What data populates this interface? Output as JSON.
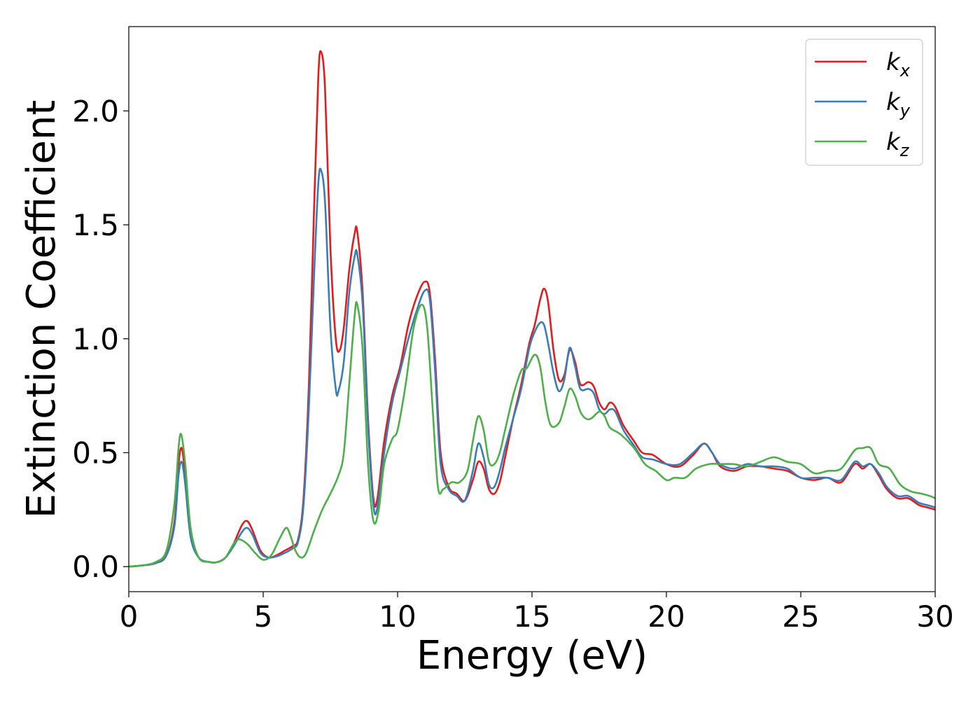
{
  "chart_data": {
    "type": "line",
    "xlabel": "Energy (eV)",
    "ylabel": "Extinction Coefficient",
    "xlim": [
      0,
      30
    ],
    "ylim": [
      -0.11,
      2.37
    ],
    "xticks": [
      0,
      5,
      10,
      15,
      20,
      25,
      30
    ],
    "xtick_labels": [
      "0",
      "5",
      "10",
      "15",
      "20",
      "25",
      "30"
    ],
    "yticks": [
      0.0,
      0.5,
      1.0,
      1.5,
      2.0
    ],
    "ytick_labels": [
      "0.0",
      "0.5",
      "1.0",
      "1.5",
      "2.0"
    ],
    "grid": false,
    "legend_position": "top-right",
    "series": [
      {
        "name": "k",
        "subscript": "x",
        "color": "#e41a1c",
        "points": [
          [
            0,
            0
          ],
          [
            0.5,
            0.005
          ],
          [
            1.0,
            0.015
          ],
          [
            1.4,
            0.05
          ],
          [
            1.7,
            0.2
          ],
          [
            1.85,
            0.45
          ],
          [
            1.97,
            0.52
          ],
          [
            2.1,
            0.4
          ],
          [
            2.3,
            0.15
          ],
          [
            2.6,
            0.04
          ],
          [
            3.0,
            0.02
          ],
          [
            3.3,
            0.02
          ],
          [
            3.6,
            0.04
          ],
          [
            3.9,
            0.1
          ],
          [
            4.2,
            0.18
          ],
          [
            4.4,
            0.2
          ],
          [
            4.6,
            0.16
          ],
          [
            4.9,
            0.07
          ],
          [
            5.2,
            0.04
          ],
          [
            5.5,
            0.05
          ],
          [
            5.8,
            0.07
          ],
          [
            6.1,
            0.09
          ],
          [
            6.3,
            0.12
          ],
          [
            6.5,
            0.3
          ],
          [
            6.7,
            0.8
          ],
          [
            6.9,
            1.6
          ],
          [
            7.05,
            2.15
          ],
          [
            7.15,
            2.26
          ],
          [
            7.3,
            2.1
          ],
          [
            7.5,
            1.4
          ],
          [
            7.7,
            1.0
          ],
          [
            7.85,
            0.95
          ],
          [
            8.0,
            1.05
          ],
          [
            8.2,
            1.3
          ],
          [
            8.4,
            1.46
          ],
          [
            8.5,
            1.47
          ],
          [
            8.7,
            1.2
          ],
          [
            8.9,
            0.65
          ],
          [
            9.1,
            0.3
          ],
          [
            9.25,
            0.3
          ],
          [
            9.5,
            0.55
          ],
          [
            9.8,
            0.75
          ],
          [
            10.1,
            0.88
          ],
          [
            10.4,
            1.06
          ],
          [
            10.7,
            1.18
          ],
          [
            11.0,
            1.25
          ],
          [
            11.2,
            1.2
          ],
          [
            11.4,
            0.9
          ],
          [
            11.6,
            0.5
          ],
          [
            11.9,
            0.35
          ],
          [
            12.2,
            0.32
          ],
          [
            12.5,
            0.29
          ],
          [
            12.8,
            0.38
          ],
          [
            13.0,
            0.46
          ],
          [
            13.2,
            0.43
          ],
          [
            13.4,
            0.34
          ],
          [
            13.6,
            0.32
          ],
          [
            13.8,
            0.37
          ],
          [
            14.0,
            0.48
          ],
          [
            14.3,
            0.65
          ],
          [
            14.6,
            0.8
          ],
          [
            14.9,
            0.98
          ],
          [
            15.1,
            1.06
          ],
          [
            15.3,
            1.17
          ],
          [
            15.45,
            1.22
          ],
          [
            15.6,
            1.16
          ],
          [
            15.8,
            0.95
          ],
          [
            16.0,
            0.82
          ],
          [
            16.2,
            0.84
          ],
          [
            16.4,
            0.95
          ],
          [
            16.6,
            0.9
          ],
          [
            16.8,
            0.8
          ],
          [
            17.1,
            0.81
          ],
          [
            17.3,
            0.79
          ],
          [
            17.5,
            0.72
          ],
          [
            17.7,
            0.69
          ],
          [
            17.9,
            0.72
          ],
          [
            18.1,
            0.7
          ],
          [
            18.4,
            0.62
          ],
          [
            18.8,
            0.55
          ],
          [
            19.1,
            0.5
          ],
          [
            19.5,
            0.49
          ],
          [
            20.0,
            0.45
          ],
          [
            20.5,
            0.44
          ],
          [
            21.0,
            0.49
          ],
          [
            21.4,
            0.54
          ],
          [
            21.7,
            0.5
          ],
          [
            22.0,
            0.44
          ],
          [
            22.5,
            0.42
          ],
          [
            23.0,
            0.44
          ],
          [
            23.5,
            0.44
          ],
          [
            24.0,
            0.43
          ],
          [
            24.5,
            0.42
          ],
          [
            25.0,
            0.39
          ],
          [
            25.5,
            0.38
          ],
          [
            26.0,
            0.39
          ],
          [
            26.5,
            0.37
          ],
          [
            27.0,
            0.45
          ],
          [
            27.3,
            0.43
          ],
          [
            27.6,
            0.45
          ],
          [
            27.9,
            0.4
          ],
          [
            28.2,
            0.34
          ],
          [
            28.6,
            0.3
          ],
          [
            29.0,
            0.3
          ],
          [
            29.4,
            0.27
          ],
          [
            29.7,
            0.26
          ],
          [
            30.0,
            0.25
          ]
        ]
      },
      {
        "name": "k",
        "subscript": "y",
        "color": "#377eb8",
        "points": [
          [
            0,
            0
          ],
          [
            0.5,
            0.005
          ],
          [
            1.0,
            0.015
          ],
          [
            1.4,
            0.05
          ],
          [
            1.7,
            0.18
          ],
          [
            1.85,
            0.4
          ],
          [
            1.97,
            0.46
          ],
          [
            2.1,
            0.36
          ],
          [
            2.3,
            0.13
          ],
          [
            2.6,
            0.04
          ],
          [
            3.0,
            0.02
          ],
          [
            3.3,
            0.02
          ],
          [
            3.6,
            0.04
          ],
          [
            3.9,
            0.09
          ],
          [
            4.2,
            0.15
          ],
          [
            4.4,
            0.17
          ],
          [
            4.6,
            0.14
          ],
          [
            4.9,
            0.06
          ],
          [
            5.2,
            0.04
          ],
          [
            5.5,
            0.045
          ],
          [
            5.8,
            0.06
          ],
          [
            6.1,
            0.08
          ],
          [
            6.3,
            0.11
          ],
          [
            6.5,
            0.27
          ],
          [
            6.7,
            0.7
          ],
          [
            6.9,
            1.3
          ],
          [
            7.05,
            1.68
          ],
          [
            7.15,
            1.74
          ],
          [
            7.3,
            1.6
          ],
          [
            7.5,
            1.05
          ],
          [
            7.7,
            0.78
          ],
          [
            7.8,
            0.77
          ],
          [
            8.0,
            0.9
          ],
          [
            8.2,
            1.2
          ],
          [
            8.4,
            1.36
          ],
          [
            8.5,
            1.37
          ],
          [
            8.7,
            1.15
          ],
          [
            8.9,
            0.62
          ],
          [
            9.1,
            0.27
          ],
          [
            9.25,
            0.26
          ],
          [
            9.5,
            0.5
          ],
          [
            9.8,
            0.72
          ],
          [
            10.1,
            0.86
          ],
          [
            10.4,
            1.0
          ],
          [
            10.7,
            1.12
          ],
          [
            11.0,
            1.21
          ],
          [
            11.2,
            1.17
          ],
          [
            11.4,
            0.85
          ],
          [
            11.6,
            0.45
          ],
          [
            11.9,
            0.34
          ],
          [
            12.2,
            0.31
          ],
          [
            12.5,
            0.29
          ],
          [
            12.8,
            0.42
          ],
          [
            13.0,
            0.54
          ],
          [
            13.2,
            0.48
          ],
          [
            13.4,
            0.36
          ],
          [
            13.6,
            0.35
          ],
          [
            13.8,
            0.42
          ],
          [
            14.0,
            0.52
          ],
          [
            14.3,
            0.65
          ],
          [
            14.6,
            0.78
          ],
          [
            14.9,
            0.96
          ],
          [
            15.1,
            1.03
          ],
          [
            15.3,
            1.07
          ],
          [
            15.45,
            1.06
          ],
          [
            15.6,
            0.98
          ],
          [
            15.8,
            0.85
          ],
          [
            16.0,
            0.77
          ],
          [
            16.2,
            0.82
          ],
          [
            16.4,
            0.96
          ],
          [
            16.6,
            0.88
          ],
          [
            16.8,
            0.78
          ],
          [
            17.1,
            0.78
          ],
          [
            17.3,
            0.76
          ],
          [
            17.5,
            0.69
          ],
          [
            17.7,
            0.67
          ],
          [
            17.9,
            0.69
          ],
          [
            18.1,
            0.68
          ],
          [
            18.4,
            0.6
          ],
          [
            18.8,
            0.53
          ],
          [
            19.1,
            0.48
          ],
          [
            19.5,
            0.47
          ],
          [
            20.0,
            0.45
          ],
          [
            20.5,
            0.45
          ],
          [
            21.0,
            0.5
          ],
          [
            21.4,
            0.54
          ],
          [
            21.7,
            0.5
          ],
          [
            22.0,
            0.45
          ],
          [
            22.5,
            0.43
          ],
          [
            23.0,
            0.45
          ],
          [
            23.5,
            0.44
          ],
          [
            24.0,
            0.44
          ],
          [
            24.5,
            0.43
          ],
          [
            25.0,
            0.39
          ],
          [
            25.5,
            0.39
          ],
          [
            26.0,
            0.39
          ],
          [
            26.5,
            0.38
          ],
          [
            27.0,
            0.46
          ],
          [
            27.3,
            0.44
          ],
          [
            27.6,
            0.45
          ],
          [
            27.9,
            0.41
          ],
          [
            28.2,
            0.35
          ],
          [
            28.6,
            0.31
          ],
          [
            29.0,
            0.31
          ],
          [
            29.4,
            0.28
          ],
          [
            29.7,
            0.27
          ],
          [
            30.0,
            0.26
          ]
        ]
      },
      {
        "name": "k",
        "subscript": "z",
        "color": "#4daf4a",
        "points": [
          [
            0,
            0
          ],
          [
            0.5,
            0.005
          ],
          [
            1.0,
            0.02
          ],
          [
            1.4,
            0.07
          ],
          [
            1.7,
            0.28
          ],
          [
            1.85,
            0.52
          ],
          [
            1.95,
            0.58
          ],
          [
            2.1,
            0.45
          ],
          [
            2.3,
            0.17
          ],
          [
            2.6,
            0.04
          ],
          [
            3.0,
            0.02
          ],
          [
            3.3,
            0.02
          ],
          [
            3.6,
            0.04
          ],
          [
            3.9,
            0.1
          ],
          [
            4.1,
            0.12
          ],
          [
            4.4,
            0.1
          ],
          [
            4.7,
            0.06
          ],
          [
            5.0,
            0.03
          ],
          [
            5.3,
            0.05
          ],
          [
            5.6,
            0.12
          ],
          [
            5.85,
            0.17
          ],
          [
            6.0,
            0.14
          ],
          [
            6.2,
            0.07
          ],
          [
            6.4,
            0.04
          ],
          [
            6.6,
            0.06
          ],
          [
            6.9,
            0.16
          ],
          [
            7.2,
            0.25
          ],
          [
            7.5,
            0.32
          ],
          [
            7.8,
            0.4
          ],
          [
            8.0,
            0.5
          ],
          [
            8.2,
            0.8
          ],
          [
            8.4,
            1.1
          ],
          [
            8.5,
            1.15
          ],
          [
            8.7,
            0.95
          ],
          [
            8.9,
            0.45
          ],
          [
            9.1,
            0.2
          ],
          [
            9.3,
            0.25
          ],
          [
            9.5,
            0.45
          ],
          [
            9.8,
            0.56
          ],
          [
            10.0,
            0.6
          ],
          [
            10.3,
            0.8
          ],
          [
            10.6,
            1.05
          ],
          [
            10.9,
            1.15
          ],
          [
            11.1,
            1.05
          ],
          [
            11.3,
            0.7
          ],
          [
            11.5,
            0.35
          ],
          [
            11.7,
            0.34
          ],
          [
            12.0,
            0.37
          ],
          [
            12.3,
            0.37
          ],
          [
            12.6,
            0.42
          ],
          [
            12.8,
            0.55
          ],
          [
            13.0,
            0.66
          ],
          [
            13.2,
            0.6
          ],
          [
            13.4,
            0.46
          ],
          [
            13.6,
            0.45
          ],
          [
            13.8,
            0.5
          ],
          [
            14.0,
            0.6
          ],
          [
            14.3,
            0.75
          ],
          [
            14.6,
            0.86
          ],
          [
            14.8,
            0.87
          ],
          [
            15.1,
            0.93
          ],
          [
            15.3,
            0.88
          ],
          [
            15.5,
            0.72
          ],
          [
            15.7,
            0.62
          ],
          [
            16.0,
            0.63
          ],
          [
            16.2,
            0.7
          ],
          [
            16.4,
            0.78
          ],
          [
            16.6,
            0.75
          ],
          [
            16.8,
            0.68
          ],
          [
            17.0,
            0.65
          ],
          [
            17.2,
            0.65
          ],
          [
            17.5,
            0.68
          ],
          [
            17.7,
            0.66
          ],
          [
            17.9,
            0.61
          ],
          [
            18.3,
            0.58
          ],
          [
            18.8,
            0.52
          ],
          [
            19.2,
            0.45
          ],
          [
            19.6,
            0.42
          ],
          [
            20.0,
            0.38
          ],
          [
            20.3,
            0.39
          ],
          [
            20.7,
            0.39
          ],
          [
            21.1,
            0.43
          ],
          [
            21.6,
            0.45
          ],
          [
            22.0,
            0.45
          ],
          [
            22.5,
            0.45
          ],
          [
            23.0,
            0.44
          ],
          [
            23.5,
            0.46
          ],
          [
            24.0,
            0.48
          ],
          [
            24.5,
            0.46
          ],
          [
            25.0,
            0.45
          ],
          [
            25.5,
            0.41
          ],
          [
            26.0,
            0.42
          ],
          [
            26.5,
            0.43
          ],
          [
            27.0,
            0.51
          ],
          [
            27.3,
            0.52
          ],
          [
            27.6,
            0.52
          ],
          [
            27.9,
            0.45
          ],
          [
            28.3,
            0.43
          ],
          [
            28.7,
            0.36
          ],
          [
            29.1,
            0.33
          ],
          [
            29.5,
            0.32
          ],
          [
            29.8,
            0.31
          ],
          [
            30.0,
            0.3
          ]
        ]
      }
    ]
  }
}
